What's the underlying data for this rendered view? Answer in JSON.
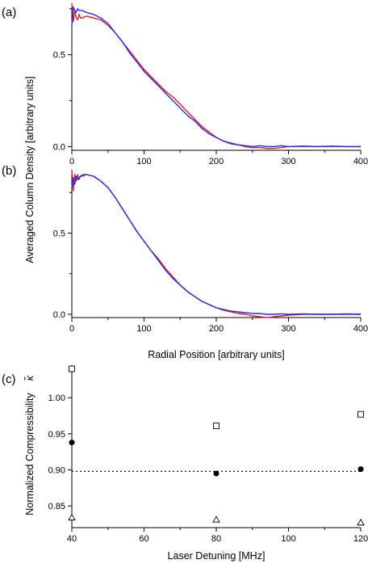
{
  "figure": {
    "ylabel_ab": "Averaged Column Density [arbitrary units]",
    "xlabel_ab": "Radial Position [arbitrary units]"
  },
  "chart_data": [
    {
      "panel": "(a)",
      "type": "line",
      "xlim": [
        0,
        400
      ],
      "ylim": [
        -0.02,
        0.78
      ],
      "x_ticks": [
        0,
        100,
        200,
        300,
        400
      ],
      "y_ticks": [
        0.0,
        0.5
      ],
      "x_tick_labels": [
        "0",
        "100",
        "200",
        "300",
        "400"
      ],
      "y_tick_labels": [
        "0.0",
        "0.5"
      ],
      "series": [
        {
          "color": "#e8191e",
          "x": [
            0,
            2,
            4,
            6,
            8,
            10,
            12,
            15,
            20,
            30,
            40,
            50,
            60,
            70,
            80,
            90,
            100,
            110,
            120,
            130,
            140,
            150,
            160,
            170,
            180,
            190,
            200,
            210,
            220,
            230,
            240,
            250,
            260,
            270,
            280,
            290,
            300,
            320,
            340,
            360,
            380,
            400
          ],
          "y": [
            0.78,
            0.68,
            0.74,
            0.7,
            0.69,
            0.72,
            0.7,
            0.7,
            0.71,
            0.7,
            0.69,
            0.66,
            0.62,
            0.57,
            0.52,
            0.47,
            0.42,
            0.38,
            0.34,
            0.3,
            0.27,
            0.23,
            0.19,
            0.15,
            0.11,
            0.08,
            0.05,
            0.03,
            0.015,
            0.01,
            0.0,
            -0.005,
            -0.005,
            -0.01,
            -0.01,
            -0.005,
            0.0,
            0.0,
            0.0,
            0.0,
            0.0,
            0.0
          ]
        },
        {
          "color": "#1f2ee6",
          "x": [
            0,
            2,
            4,
            6,
            8,
            10,
            12,
            15,
            20,
            30,
            40,
            50,
            60,
            70,
            80,
            90,
            100,
            110,
            120,
            130,
            140,
            150,
            160,
            170,
            180,
            190,
            200,
            210,
            220,
            230,
            240,
            250,
            260,
            270,
            280,
            290,
            300,
            320,
            340,
            360,
            380,
            400
          ],
          "y": [
            0.66,
            0.76,
            0.74,
            0.73,
            0.75,
            0.74,
            0.74,
            0.74,
            0.73,
            0.72,
            0.7,
            0.67,
            0.62,
            0.57,
            0.51,
            0.46,
            0.41,
            0.37,
            0.33,
            0.29,
            0.25,
            0.21,
            0.17,
            0.14,
            0.1,
            0.07,
            0.05,
            0.03,
            0.02,
            0.01,
            0.005,
            0.0,
            0.005,
            0.0,
            0.0,
            0.005,
            0.0,
            0.003,
            0.0,
            0.003,
            0.0,
            0.0
          ]
        }
      ]
    },
    {
      "panel": "(b)",
      "type": "line",
      "xlim": [
        0,
        400
      ],
      "ylim": [
        -0.02,
        0.89
      ],
      "x_ticks": [
        0,
        100,
        200,
        300,
        400
      ],
      "y_ticks": [
        0.0,
        0.5
      ],
      "x_tick_labels": [
        "0",
        "100",
        "200",
        "300",
        "400"
      ],
      "y_tick_labels": [
        "0.0",
        "0.5"
      ],
      "series": [
        {
          "color": "#e8191e",
          "x": [
            0,
            2,
            4,
            6,
            8,
            10,
            12,
            15,
            20,
            30,
            40,
            50,
            60,
            70,
            80,
            90,
            100,
            110,
            120,
            130,
            140,
            150,
            160,
            170,
            180,
            190,
            200,
            210,
            220,
            230,
            240,
            250,
            260,
            270,
            280,
            290,
            300,
            320,
            340,
            360,
            380,
            400
          ],
          "y": [
            0.89,
            0.76,
            0.86,
            0.82,
            0.86,
            0.83,
            0.85,
            0.86,
            0.86,
            0.85,
            0.82,
            0.78,
            0.72,
            0.65,
            0.58,
            0.51,
            0.45,
            0.39,
            0.34,
            0.28,
            0.23,
            0.18,
            0.14,
            0.11,
            0.08,
            0.06,
            0.04,
            0.025,
            0.015,
            0.005,
            0.0,
            -0.01,
            -0.015,
            -0.02,
            -0.015,
            -0.01,
            -0.005,
            0.0,
            0.0,
            0.0,
            0.0,
            0.0
          ]
        },
        {
          "color": "#1f2ee6",
          "x": [
            0,
            2,
            4,
            6,
            8,
            10,
            12,
            15,
            20,
            30,
            40,
            50,
            60,
            70,
            80,
            90,
            100,
            110,
            120,
            130,
            140,
            150,
            160,
            170,
            180,
            190,
            200,
            210,
            220,
            230,
            240,
            250,
            260,
            270,
            280,
            290,
            300,
            320,
            340,
            360,
            380,
            400
          ],
          "y": [
            0.78,
            0.84,
            0.8,
            0.85,
            0.83,
            0.84,
            0.85,
            0.85,
            0.86,
            0.85,
            0.82,
            0.78,
            0.72,
            0.65,
            0.58,
            0.51,
            0.45,
            0.39,
            0.33,
            0.27,
            0.22,
            0.18,
            0.14,
            0.11,
            0.08,
            0.06,
            0.04,
            0.03,
            0.02,
            0.015,
            0.01,
            0.005,
            0.005,
            0.0,
            0.0,
            0.003,
            0.0,
            0.003,
            0.0,
            0.0,
            0.003,
            0.0
          ]
        }
      ]
    },
    {
      "panel": "(c)",
      "type": "scatter",
      "xlabel": "Laser Detuning [MHz]",
      "ylabel": "Normalized Compressibility",
      "ylabel_symbol": "κ̃",
      "xlim": [
        40,
        120
      ],
      "ylim": [
        0.82,
        1.045
      ],
      "x_ticks": [
        40,
        60,
        80,
        100,
        120
      ],
      "y_ticks": [
        0.85,
        0.9,
        0.95,
        1.0
      ],
      "x_tick_labels": [
        "40",
        "60",
        "80",
        "100",
        "120"
      ],
      "y_tick_labels": [
        "0.85",
        "0.90",
        "0.95",
        "1.00"
      ],
      "reference_line": 0.898,
      "series": [
        {
          "marker": "filled-circle",
          "x": [
            40,
            80,
            120
          ],
          "y": [
            0.938,
            0.895,
            0.901
          ]
        },
        {
          "marker": "open-square",
          "x": [
            40,
            80,
            120
          ],
          "y": [
            1.04,
            0.961,
            0.977
          ]
        },
        {
          "marker": "open-triangle",
          "x": [
            40,
            80,
            120
          ],
          "y": [
            0.834,
            0.831,
            0.827
          ]
        }
      ]
    }
  ]
}
